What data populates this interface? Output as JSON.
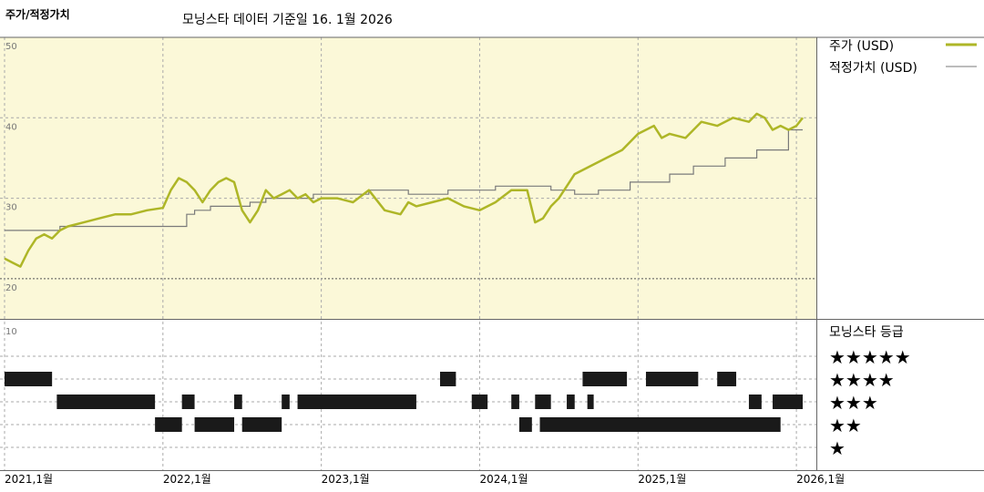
{
  "header": {
    "left_title": "주가/적정가치",
    "center_title": "모닝스타 데이터 기준일 16. 1월 2026"
  },
  "colors": {
    "price": "#aeb627",
    "fair_value": "#7a7a7a",
    "upper_bg": "#fbf8d8",
    "rating_bar": "#1a1a1a"
  },
  "legend": {
    "price_label": "주가 (USD)",
    "fair_label": "적정가치 (USD)"
  },
  "rating_panel": {
    "title": "모닝스타 등급",
    "ytick": "10",
    "stars": [
      "★★★★★",
      "★★★★",
      "★★★",
      "★★",
      "★"
    ]
  },
  "chart_data": {
    "type": "line",
    "x_axis": {
      "ticks": [
        "2021,1월",
        "2022,1월",
        "2023,1월",
        "2024,1월",
        "2025,1월",
        "2026,1월"
      ],
      "range": [
        2021.0,
        2026.08
      ]
    },
    "y_axis": {
      "ticks": [
        20,
        30,
        40,
        50
      ],
      "range": [
        15,
        50
      ],
      "grid": true
    },
    "legend_position": "top-right",
    "series": [
      {
        "name": "주가 (USD)",
        "x": [
          2021.0,
          2021.05,
          2021.1,
          2021.15,
          2021.2,
          2021.25,
          2021.3,
          2021.35,
          2021.4,
          2021.5,
          2021.6,
          2021.7,
          2021.8,
          2021.9,
          2022.0,
          2022.05,
          2022.1,
          2022.15,
          2022.2,
          2022.25,
          2022.3,
          2022.35,
          2022.4,
          2022.45,
          2022.5,
          2022.55,
          2022.6,
          2022.65,
          2022.7,
          2022.75,
          2022.8,
          2022.85,
          2022.9,
          2022.95,
          2023.0,
          2023.1,
          2023.2,
          2023.3,
          2023.4,
          2023.5,
          2023.55,
          2023.6,
          2023.7,
          2023.8,
          2023.9,
          2024.0,
          2024.1,
          2024.2,
          2024.3,
          2024.35,
          2024.4,
          2024.45,
          2024.5,
          2024.55,
          2024.6,
          2024.7,
          2024.8,
          2024.9,
          2025.0,
          2025.1,
          2025.15,
          2025.2,
          2025.3,
          2025.4,
          2025.5,
          2025.6,
          2025.7,
          2025.75,
          2025.8,
          2025.85,
          2025.9,
          2025.95,
          2026.0,
          2026.04
        ],
        "values": [
          22.5,
          22.0,
          21.5,
          23.5,
          25.0,
          25.5,
          25.0,
          26.0,
          26.5,
          27.0,
          27.5,
          28.0,
          28.0,
          28.5,
          28.8,
          31.0,
          32.5,
          32.0,
          31.0,
          29.5,
          31.0,
          32.0,
          32.5,
          32.0,
          28.5,
          27.0,
          28.5,
          31.0,
          30.0,
          30.5,
          31.0,
          30.0,
          30.5,
          29.5,
          30.0,
          30.0,
          29.5,
          31.0,
          28.5,
          28.0,
          29.5,
          29.0,
          29.5,
          30.0,
          29.0,
          28.5,
          29.5,
          31.0,
          31.0,
          27.0,
          27.5,
          29.0,
          30.0,
          31.5,
          33.0,
          34.0,
          35.0,
          36.0,
          38.0,
          39.0,
          37.5,
          38.0,
          37.5,
          39.5,
          39.0,
          40.0,
          39.5,
          40.5,
          40.0,
          38.5,
          39.0,
          38.5,
          39.0,
          40.0
        ]
      },
      {
        "name": "적정가치 (USD)",
        "x": [
          2021.0,
          2021.35,
          2021.35,
          2022.15,
          2022.15,
          2022.2,
          2022.2,
          2022.3,
          2022.3,
          2022.55,
          2022.55,
          2022.65,
          2022.65,
          2022.95,
          2022.95,
          2023.3,
          2023.3,
          2023.55,
          2023.55,
          2023.8,
          2023.8,
          2024.1,
          2024.1,
          2024.45,
          2024.45,
          2024.6,
          2024.6,
          2024.75,
          2024.75,
          2024.95,
          2024.95,
          2025.2,
          2025.2,
          2025.35,
          2025.35,
          2025.55,
          2025.55,
          2025.75,
          2025.75,
          2025.95,
          2025.95,
          2026.04
        ],
        "values": [
          26.0,
          26.0,
          26.5,
          26.5,
          28.0,
          28.0,
          28.5,
          28.5,
          29.0,
          29.0,
          29.5,
          29.5,
          30.0,
          30.0,
          30.5,
          30.5,
          31.0,
          31.0,
          30.5,
          30.5,
          31.0,
          31.0,
          31.5,
          31.5,
          31.0,
          31.0,
          30.5,
          30.5,
          31.0,
          31.0,
          32.0,
          32.0,
          33.0,
          33.0,
          34.0,
          34.0,
          35.0,
          35.0,
          36.0,
          36.0,
          38.5,
          38.5
        ]
      }
    ],
    "rating_bands": [
      {
        "rating": 4,
        "segments": [
          [
            2021.0,
            2021.3
          ],
          [
            2023.75,
            2023.85
          ],
          [
            2024.65,
            2024.93
          ],
          [
            2025.05,
            2025.38
          ],
          [
            2025.5,
            2025.62
          ]
        ]
      },
      {
        "rating": 3,
        "segments": [
          [
            2021.33,
            2021.95
          ],
          [
            2022.12,
            2022.2
          ],
          [
            2022.45,
            2022.5
          ],
          [
            2022.75,
            2022.8
          ],
          [
            2022.85,
            2023.6
          ],
          [
            2023.95,
            2024.05
          ],
          [
            2024.2,
            2024.25
          ],
          [
            2024.35,
            2024.45
          ],
          [
            2024.55,
            2024.6
          ],
          [
            2024.68,
            2024.72
          ],
          [
            2025.7,
            2025.78
          ],
          [
            2025.85,
            2026.04
          ]
        ]
      },
      {
        "rating": 2,
        "segments": [
          [
            2021.95,
            2022.12
          ],
          [
            2022.2,
            2022.45
          ],
          [
            2022.5,
            2022.75
          ],
          [
            2024.25,
            2024.33
          ],
          [
            2024.38,
            2025.9
          ]
        ]
      }
    ]
  }
}
